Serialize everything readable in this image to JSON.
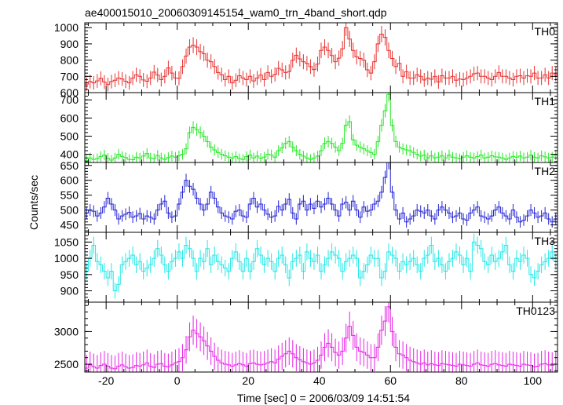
{
  "chart_data": {
    "type": "line",
    "style": "step-with-error-bars",
    "title": "ae400015010_20060309145154_wam0_trn_4band_short.qdp",
    "xlabel": "Time [sec] 0 = 2006/03/09 14:51:54",
    "ylabel": "Counts/sec",
    "xlim": [
      -26,
      107
    ],
    "x_ticks": [
      -20,
      0,
      20,
      40,
      60,
      80,
      100
    ],
    "bin_width": 1.0,
    "x_start": -25.5,
    "grid": false,
    "panels": [
      {
        "name": "TH0",
        "color": "#e8312f",
        "ylim": [
          600,
          1030
        ],
        "y_ticks": [
          600,
          700,
          800,
          900,
          1000
        ],
        "values": [
          652,
          668,
          660,
          672,
          688,
          665,
          650,
          668,
          676,
          690,
          684,
          670,
          660,
          690,
          710,
          700,
          678,
          670,
          690,
          726,
          708,
          680,
          700,
          752,
          720,
          690,
          688,
          760,
          825,
          880,
          892,
          880,
          852,
          840,
          800,
          790,
          760,
          724,
          710,
          680,
          700,
          660,
          676,
          704,
          690,
          680,
          700,
          672,
          690,
          708,
          680,
          724,
          700,
          712,
          750,
          740,
          724,
          730,
          800,
          830,
          808,
          790,
          780,
          760,
          742,
          776,
          860,
          880,
          860,
          828,
          790,
          812,
          870,
          1000,
          930,
          860,
          820,
          810,
          800,
          740,
          720,
          790,
          900,
          960,
          940,
          860,
          810,
          760,
          780,
          700,
          728,
          690,
          690,
          710,
          700,
          678,
          690,
          682,
          700,
          666,
          704,
          690,
          690,
          700,
          676,
          684,
          680,
          690,
          700,
          716,
          720,
          700,
          700,
          690,
          680,
          700,
          724,
          700,
          700,
          690,
          680,
          700,
          704,
          690,
          704,
          700,
          720,
          690,
          690,
          710,
          690,
          720,
          712,
          700,
          690,
          708,
          690,
          718,
          700,
          690,
          660,
          690,
          710,
          690
        ]
      },
      {
        "name": "TH1",
        "color": "#22e822",
        "ylim": [
          355,
          740
        ],
        "y_ticks": [
          400,
          500,
          600,
          700
        ],
        "values": [
          366,
          380,
          372,
          376,
          388,
          396,
          378,
          368,
          380,
          400,
          388,
          382,
          372,
          370,
          384,
          380,
          390,
          404,
          380,
          376,
          394,
          380,
          372,
          382,
          390,
          384,
          392,
          400,
          430,
          520,
          548,
          536,
          520,
          500,
          470,
          440,
          424,
          410,
          400,
          392,
          384,
          380,
          388,
          376,
          372,
          388,
          396,
          380,
          390,
          378,
          384,
          400,
          396,
          384,
          420,
          436,
          460,
          470,
          440,
          420,
          400,
          390,
          380,
          372,
          380,
          390,
          420,
          460,
          470,
          460,
          440,
          420,
          460,
          560,
          580,
          480,
          450,
          440,
          430,
          420,
          410,
          400,
          470,
          560,
          640,
          730,
          560,
          470,
          440,
          430,
          424,
          420,
          410,
          400,
          390,
          396,
          380,
          392,
          380,
          384,
          392,
          380,
          396,
          384,
          380,
          376,
          384,
          392,
          384,
          380,
          388,
          396,
          380,
          384,
          392,
          386,
          384,
          380,
          372,
          380,
          388,
          384,
          390,
          380,
          384,
          396,
          384,
          380,
          392,
          386,
          380,
          384,
          396,
          380,
          384,
          392,
          380,
          388,
          380,
          384,
          376,
          380,
          386,
          380
        ]
      },
      {
        "name": "TH2",
        "color": "#2424d4",
        "ylim": [
          425,
          660
        ],
        "y_ticks": [
          450,
          500,
          550,
          600,
          650
        ],
        "values": [
          490,
          500,
          496,
          480,
          490,
          510,
          540,
          520,
          500,
          470,
          480,
          486,
          492,
          476,
          480,
          488,
          470,
          480,
          476,
          470,
          500,
          520,
          530,
          490,
          476,
          480,
          520,
          560,
          600,
          580,
          570,
          540,
          520,
          500,
          520,
          560,
          540,
          510,
          490,
          480,
          476,
          470,
          496,
          500,
          480,
          476,
          520,
          540,
          510,
          520,
          500,
          486,
          476,
          480,
          512,
          500,
          520,
          536,
          490,
          470,
          520,
          530,
          500,
          520,
          506,
          530,
          510,
          520,
          540,
          520,
          500,
          480,
          520,
          526,
          500,
          530,
          500,
          476,
          510,
          496,
          500,
          520,
          530,
          560,
          610,
          660,
          560,
          500,
          470,
          490,
          460,
          470,
          480,
          500,
          496,
          490,
          500,
          480,
          470,
          500,
          510,
          500,
          490,
          476,
          480,
          490,
          470,
          466,
          490,
          500,
          510,
          480,
          476,
          470,
          480,
          500,
          510,
          490,
          480,
          470,
          500,
          476,
          460,
          466,
          480,
          500,
          490,
          476,
          480,
          490,
          470,
          460,
          470,
          460,
          480,
          500,
          510,
          496,
          470,
          480,
          500,
          460,
          470,
          480
        ]
      },
      {
        "name": "TH3",
        "color": "#22e8e8",
        "ylim": [
          865,
          1080
        ],
        "y_ticks": [
          900,
          950,
          1000,
          1050
        ],
        "values": [
          960,
          1000,
          1040,
          990,
          980,
          960,
          940,
          960,
          900,
          920,
          980,
          990,
          1000,
          1010,
          980,
          990,
          960,
          970,
          980,
          1000,
          1030,
          1010,
          980,
          960,
          990,
          1000,
          1020,
          1000,
          1040,
          1030,
          1000,
          960,
          1000,
          990,
          1030,
          980,
          1010,
          990,
          980,
          970,
          960,
          1000,
          1020,
          990,
          960,
          1000,
          960,
          990,
          1030,
          1010,
          980,
          1000,
          990,
          960,
          1000,
          1010,
          980,
          940,
          990,
          1000,
          1010,
          960,
          1020,
          1000,
          990,
          1010,
          960,
          980,
          1000,
          1020,
          1010,
          1000,
          960,
          990,
          1000,
          1010,
          1000,
          940,
          960,
          980,
          1010,
          1000,
          1000,
          940,
          960,
          1020,
          1010,
          1000,
          960,
          990,
          980,
          990,
          1000,
          980,
          960,
          1000,
          1010,
          1040,
          990,
          1000,
          980,
          960,
          990,
          1000,
          1020,
          1010,
          980,
          1000,
          960,
          1050,
          1040,
          1030,
          990,
          980,
          1010,
          990,
          1000,
          1020,
          1040,
          980,
          960,
          1000,
          990,
          1010,
          1000,
          950,
          940,
          960,
          980,
          990,
          1000,
          1020,
          990,
          980,
          960,
          990,
          1000,
          1010,
          990,
          1000,
          980,
          990,
          1000,
          980
        ]
      },
      {
        "name": "TH0123",
        "color": "#e822e8",
        "ylim": [
          2380,
          3450
        ],
        "y_ticks": [
          2500,
          3000
        ],
        "values": [
          2440,
          2490,
          2460,
          2440,
          2480,
          2500,
          2470,
          2440,
          2430,
          2470,
          2490,
          2460,
          2440,
          2450,
          2480,
          2470,
          2490,
          2520,
          2470,
          2450,
          2500,
          2510,
          2470,
          2460,
          2490,
          2520,
          2540,
          2600,
          2720,
          2920,
          3020,
          2970,
          2920,
          2860,
          2780,
          2700,
          2620,
          2560,
          2520,
          2500,
          2490,
          2470,
          2490,
          2510,
          2490,
          2470,
          2510,
          2520,
          2500,
          2490,
          2500,
          2520,
          2540,
          2520,
          2580,
          2620,
          2660,
          2700,
          2660,
          2600,
          2570,
          2540,
          2520,
          2500,
          2520,
          2560,
          2640,
          2760,
          2820,
          2760,
          2680,
          2640,
          2700,
          2900,
          3080,
          2940,
          2760,
          2700,
          2680,
          2640,
          2600,
          2600,
          2760,
          3020,
          3160,
          3380,
          3000,
          2760,
          2660,
          2640,
          2600,
          2560,
          2540,
          2520,
          2500,
          2520,
          2490,
          2510,
          2490,
          2480,
          2510,
          2500,
          2490,
          2480,
          2470,
          2500,
          2490,
          2480,
          2470,
          2500,
          2520,
          2490,
          2480,
          2470,
          2500,
          2510,
          2490,
          2480,
          2470,
          2500,
          2490,
          2480,
          2470,
          2500,
          2490,
          2480,
          2460,
          2470,
          2500,
          2510,
          2490,
          2480,
          2500,
          2510,
          2490,
          2480,
          2500,
          2520,
          2510,
          2490,
          2480,
          2460,
          2500,
          2470
        ]
      }
    ]
  }
}
